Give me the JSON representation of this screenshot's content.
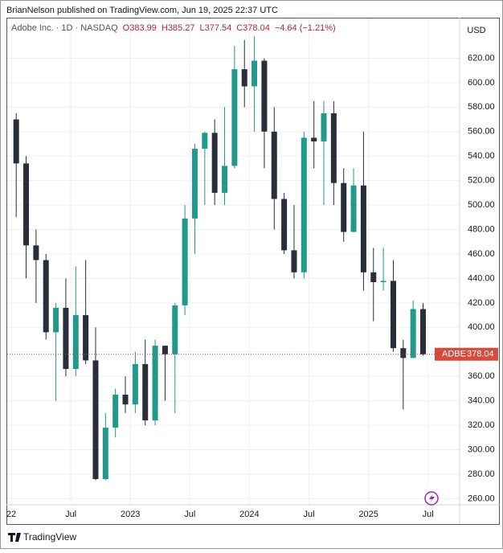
{
  "header": "BrianNelson published on TradingView.com, Jun 19, 2025 22:37 UTC",
  "footer": "TradingView",
  "chart_data": {
    "type": "candlestick",
    "legend": {
      "symbol": "Adobe Inc. · 1D · NASDAQ",
      "open": "O383.99",
      "high": "H385.27",
      "low": "L377.54",
      "close": "C378.04",
      "change": "−4.64 (−1.21%)"
    },
    "currency": "USD",
    "last_price": {
      "label": "ADBE",
      "value": 378.04
    },
    "categories": [
      "22",
      null,
      null,
      null,
      null,
      null,
      "Jul",
      null,
      null,
      null,
      null,
      null,
      "2023",
      null,
      null,
      null,
      null,
      null,
      "Jul",
      null,
      null,
      null,
      null,
      null,
      "2024",
      null,
      null,
      null,
      null,
      null,
      "Jul",
      null,
      null,
      null,
      null,
      null,
      "2025",
      null,
      null,
      null,
      null,
      null,
      "Jul"
    ],
    "open": [
      570,
      534,
      467,
      455,
      396,
      416,
      366,
      410,
      373,
      276,
      318,
      345,
      337,
      370,
      324,
      385,
      378,
      418,
      489,
      546,
      559,
      510,
      532,
      611,
      597,
      618,
      560,
      505,
      463,
      445,
      555,
      552,
      575,
      518,
      478,
      516,
      445,
      437,
      438,
      383,
      375,
      415,
      null
    ],
    "high": [
      575,
      540,
      480,
      460,
      420,
      440,
      450,
      455,
      400,
      330,
      350,
      360,
      380,
      390,
      390,
      385,
      420,
      500,
      550,
      560,
      570,
      580,
      630,
      635,
      638,
      620,
      580,
      510,
      500,
      560,
      585,
      585,
      585,
      530,
      530,
      560,
      465,
      465,
      455,
      390,
      422,
      420,
      null
    ],
    "low": [
      490,
      440,
      420,
      390,
      340,
      360,
      360,
      370,
      275,
      275,
      310,
      330,
      330,
      320,
      320,
      340,
      330,
      410,
      460,
      500,
      500,
      500,
      530,
      580,
      560,
      530,
      480,
      460,
      440,
      440,
      530,
      500,
      500,
      470,
      478,
      430,
      405,
      430,
      380,
      333,
      375,
      377,
      null
    ],
    "close": [
      534,
      467,
      455,
      396,
      416,
      366,
      410,
      373,
      276,
      318,
      345,
      337,
      370,
      324,
      385,
      378,
      418,
      489,
      546,
      559,
      510,
      532,
      611,
      597,
      618,
      560,
      505,
      463,
      445,
      555,
      552,
      575,
      518,
      478,
      516,
      445,
      437,
      438,
      383,
      375,
      415,
      378,
      null
    ],
    "up_color": "#22998a",
    "down_color": "#2a2e39",
    "ylim": [
      255,
      640
    ],
    "yticks": [
      {
        "value": 260,
        "label": "260.00"
      },
      {
        "value": 280,
        "label": "280.00"
      },
      {
        "value": 300,
        "label": "300.00"
      },
      {
        "value": 320,
        "label": "320.00"
      },
      {
        "value": 340,
        "label": "340.00"
      },
      {
        "value": 360,
        "label": "360.00"
      },
      {
        "value": 380,
        "label": "380.00"
      },
      {
        "value": 400,
        "label": "400.00"
      },
      {
        "value": 420,
        "label": "420.00"
      },
      {
        "value": 440,
        "label": "440.00"
      },
      {
        "value": 460,
        "label": "460.00"
      },
      {
        "value": 480,
        "label": "480.00"
      },
      {
        "value": 500,
        "label": "500.00"
      },
      {
        "value": 520,
        "label": "520.00"
      },
      {
        "value": 540,
        "label": "540.00"
      },
      {
        "value": 560,
        "label": "560.00"
      },
      {
        "value": 580,
        "label": "580.00"
      },
      {
        "value": 600,
        "label": "600.00"
      },
      {
        "value": 620,
        "label": "620.00"
      }
    ],
    "grid": true
  }
}
